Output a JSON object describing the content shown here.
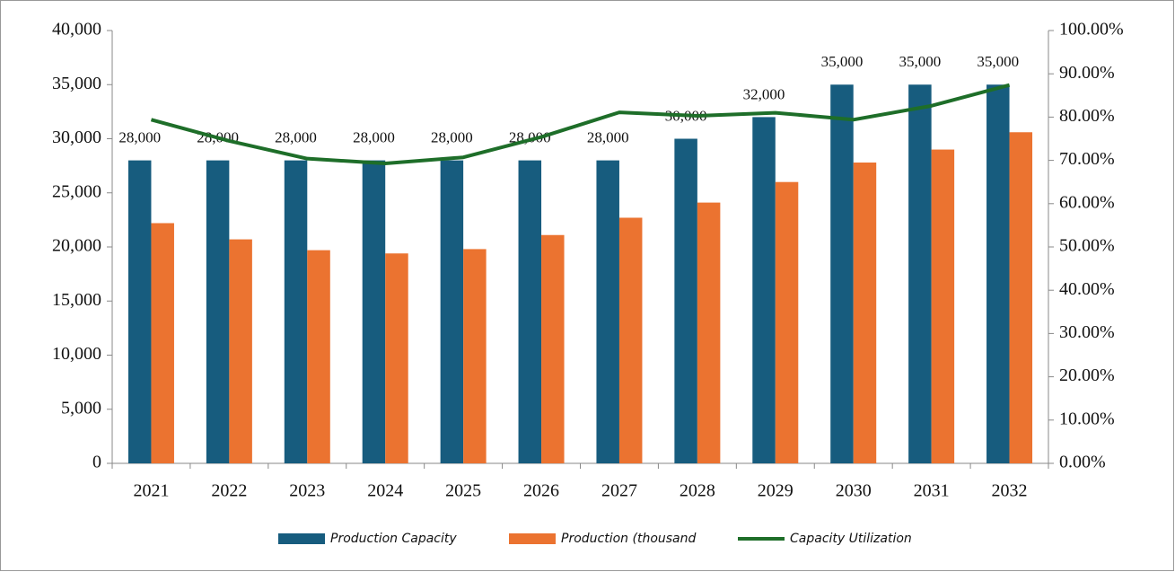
{
  "chart_data": {
    "type": "bar_line",
    "categories": [
      "2021",
      "2022",
      "2023",
      "2024",
      "2025",
      "2026",
      "2027",
      "2028",
      "2029",
      "2030",
      "2031",
      "2032"
    ],
    "series": [
      {
        "name": "Production Capacity",
        "type": "bar",
        "color": "#175c7e",
        "values": [
          28000,
          28000,
          28000,
          28000,
          28000,
          28000,
          28000,
          30000,
          32000,
          35000,
          35000,
          35000
        ],
        "value_labels": [
          "28,000",
          "28,000",
          "28,000",
          "28,000",
          "28,000",
          "28,000",
          "28,000",
          "30,000",
          "32,000",
          "35,000",
          "35,000",
          "35,000"
        ]
      },
      {
        "name": "Production (thousand",
        "type": "bar",
        "color": "#eb7330",
        "values": [
          22200,
          20700,
          19700,
          19400,
          19800,
          21100,
          22700,
          24100,
          26000,
          27800,
          29000,
          30600
        ]
      },
      {
        "name": "Capacity Utilization",
        "type": "line",
        "axis": "y2",
        "color": "#1e6e29",
        "values": [
          79.4,
          74.5,
          70.4,
          69.3,
          70.7,
          75.4,
          81.1,
          80.3,
          81.0,
          79.4,
          82.6,
          87.4
        ]
      }
    ],
    "ylim": [
      0,
      40000
    ],
    "yticks": [
      0,
      {
        "value": 5000,
        "label": "5,000"
      },
      {
        "value": 10000,
        "label": "10,000"
      },
      {
        "value": 15000,
        "label": "15,000"
      },
      {
        "value": 20000,
        "label": "20,000"
      },
      {
        "value": 25000,
        "label": "25,000"
      },
      {
        "value": 30000,
        "label": "30,000"
      },
      {
        "value": 35000,
        "label": "35,000"
      },
      {
        "value": 40000,
        "label": "40,000"
      }
    ],
    "y2lim": [
      0,
      100
    ],
    "y2ticks": [
      {
        "value": 0,
        "label": "0.00%"
      },
      {
        "value": 10,
        "label": "10.00%"
      },
      {
        "value": 20,
        "label": "20.00%"
      },
      {
        "value": 30,
        "label": "30.00%"
      },
      {
        "value": 40,
        "label": "40.00%"
      },
      {
        "value": 50,
        "label": "50.00%"
      },
      {
        "value": 60,
        "label": "60.00%"
      },
      {
        "value": 70,
        "label": "70.00%"
      },
      {
        "value": 80,
        "label": "80.00%"
      },
      {
        "value": 90,
        "label": "90.00%"
      },
      {
        "value": 100,
        "label": "100.00%"
      }
    ],
    "grid": false,
    "legend": "bottom"
  }
}
